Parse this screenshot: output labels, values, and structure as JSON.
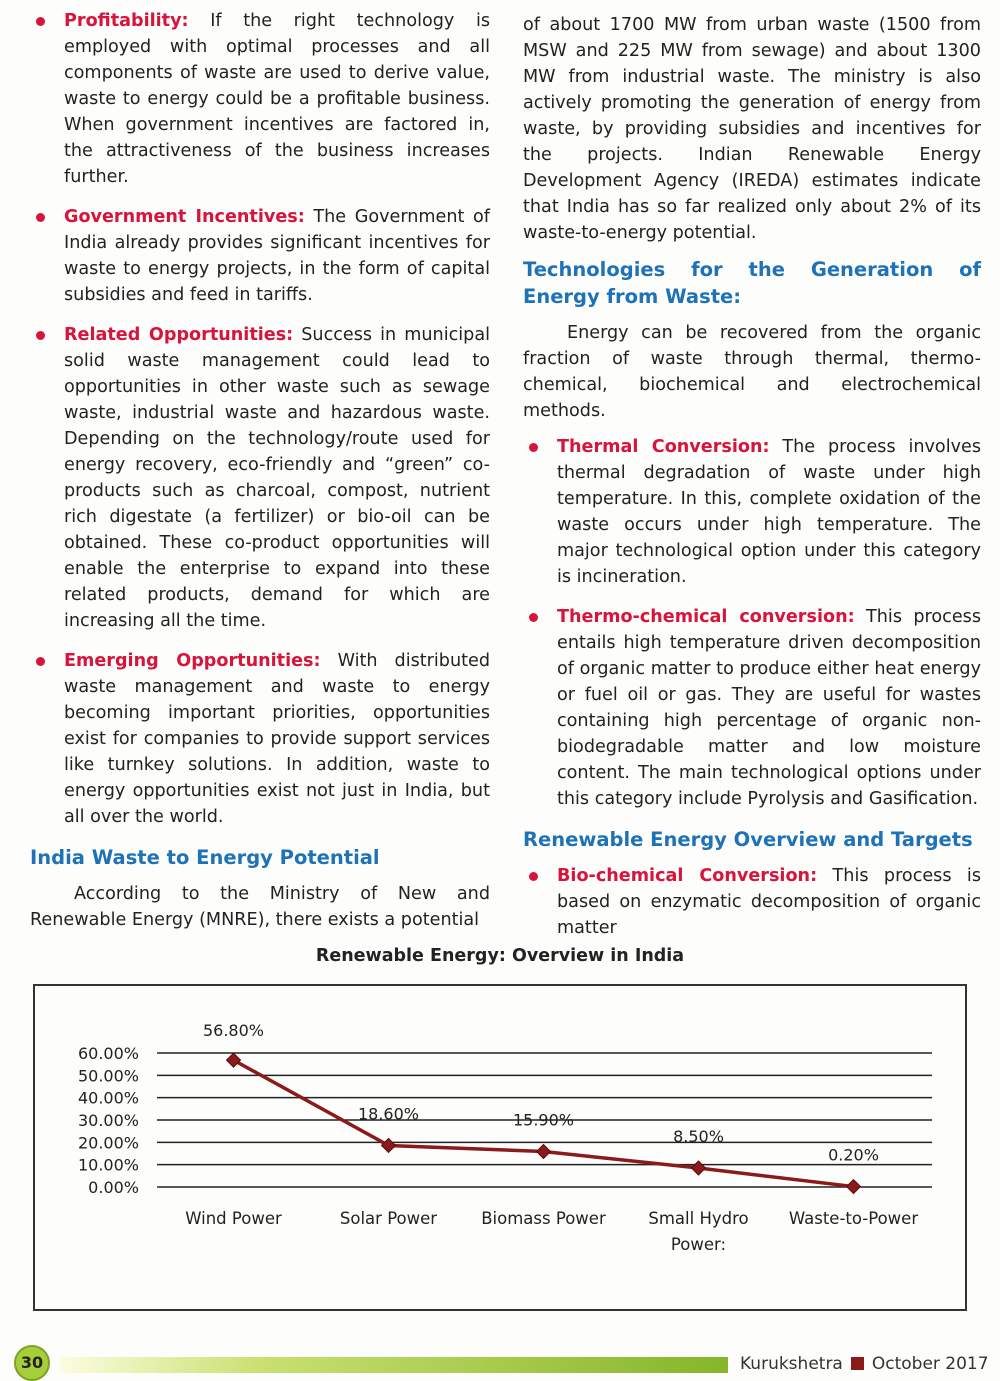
{
  "left": {
    "bullets": [
      {
        "lead": "Profitability:",
        "text": " If the right technology is employed with optimal processes and all components of waste are used to derive value, waste to energy could be a profitable business. When government incentives are factored in, the attractiveness of the business increases further."
      },
      {
        "lead": "Government Incentives:",
        "text": " The Government of India already provides significant incentives for waste to energy projects, in the form of capital subsidies and feed in tariffs."
      },
      {
        "lead": "Related Opportunities:",
        "text": " Success in municipal solid waste management could lead to opportunities in other waste such as sewage waste, industrial waste and hazardous waste. Depending on the technology/route used for energy recovery, eco-friendly and “green” co-products such as charcoal, compost, nutrient rich digestate (a fertilizer) or bio-oil can be obtained. These co-product opportunities will enable the enterprise to expand into these related products, demand for which are increasing all the time."
      },
      {
        "lead": "Emerging Opportunities:",
        "text": " With distributed waste management and waste to energy becoming important priorities, opportunities exist for companies to provide support services like turnkey solutions. In addition, waste to energy opportunities exist not just in India, but all over the world."
      }
    ],
    "heading": "India Waste to Energy Potential",
    "para": "According to the Ministry of New and Renewable Energy (MNRE), there exists a potential"
  },
  "right": {
    "para1": "of about 1700 MW from urban waste (1500 from MSW and 225 MW from sewage) and about 1300 MW from industrial waste. The ministry is also actively promoting the generation of energy from waste, by providing subsidies and incentives for the projects. Indian Renewable Energy Development Agency (IREDA) estimates indicate that India has so far realized only about 2% of its waste-to-energy potential.",
    "heading1": "Technologies for the Generation of Energy from Waste:",
    "para2": "Energy can be recovered from the organic fraction of waste through thermal, thermo-chemical, biochemical and electrochemical methods.",
    "bullets": [
      {
        "lead": "Thermal Conversion:",
        "text": " The process involves thermal degradation of waste under high temperature. In this, complete oxidation of the waste occurs under high temperature. The major technological option under this category is incineration."
      },
      {
        "lead": "Thermo-chemical conversion:",
        "text": " This process entails high temperature driven decomposition of organic matter to produce either heat energy or fuel oil or gas. They are useful for wastes containing high percentage of organic non-biodegradable matter and low moisture content. The main technological options under this category include Pyrolysis and Gasification."
      }
    ],
    "heading2": "Renewable Energy Overview and Targets",
    "bullet3": {
      "lead": "Bio-chemical Conversion:",
      "text": " This process is based on enzymatic decomposition of organic matter"
    }
  },
  "chart_data": {
    "type": "line",
    "title": "Renewable Energy: Overview in India",
    "categories": [
      "Wind Power",
      "Solar Power",
      "Biomass Power",
      "Small Hydro Power:",
      "Waste-to-Power"
    ],
    "values": [
      56.8,
      18.6,
      15.9,
      8.5,
      0.2
    ],
    "data_labels": [
      "56.80%",
      "18.60%",
      "15.90%",
      "8.50%",
      "0.20%"
    ],
    "yticks": [
      "0.00%",
      "10.00%",
      "20.00%",
      "30.00%",
      "40.00%",
      "50.00%",
      "60.00%"
    ],
    "ylim": [
      0,
      60
    ],
    "grid": true,
    "line_color": "#8b1a1a"
  },
  "footer": {
    "page": "30",
    "magazine": "Kurukshetra",
    "issue": "October 2017"
  }
}
